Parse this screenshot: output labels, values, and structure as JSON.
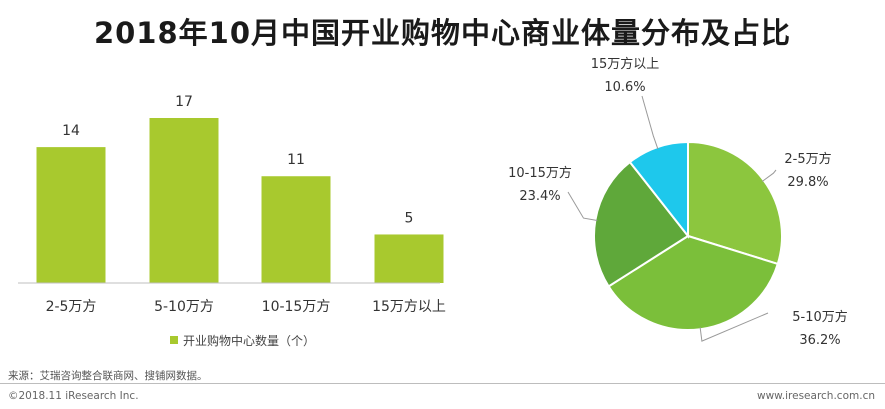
{
  "title": "2018年10月中国开业购物中心商业体量分布及占比",
  "source": "来源：艾瑞咨询整合联商网、搜铺网数据。",
  "copyright": "©2018.11 iResearch Inc.",
  "website": "www.iresearch.com.cn",
  "colors": {
    "bar": "#a8c92e",
    "pie_2_5": "#8cc63e",
    "pie_5_10": "#7bbf3a",
    "pie_10_15": "#5fa83a",
    "pie_15plus": "#1ec8ec"
  },
  "chart_data": [
    {
      "type": "bar",
      "categories": [
        "2-5万方",
        "5-10万方",
        "10-15万方",
        "15万方以上"
      ],
      "series": [
        {
          "name": "开业购物中心数量（个）",
          "values": [
            14,
            17,
            11,
            5
          ]
        }
      ],
      "data_labels": [
        "14",
        "17",
        "11",
        "5"
      ],
      "ylim": [
        0,
        17
      ],
      "grid": false,
      "legend": "bottom"
    },
    {
      "type": "pie",
      "labels": [
        "2-5万方",
        "5-10万方",
        "10-15万方",
        "15万方以上"
      ],
      "values": [
        29.8,
        36.2,
        23.4,
        10.6
      ],
      "value_labels": [
        "29.8%",
        "36.2%",
        "23.4%",
        "10.6%"
      ]
    }
  ]
}
